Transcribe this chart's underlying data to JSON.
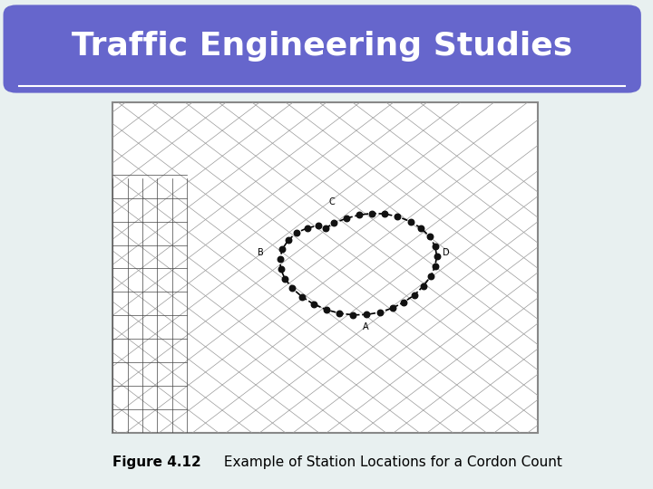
{
  "title": "Traffic Engineering Studies",
  "title_bg_color": "#6666cc",
  "title_text_color": "#ffffff",
  "slide_bg_color": "#e8f0f0",
  "slide_border_color": "#6699aa",
  "caption_bold": "Figure 4.12",
  "caption_rest": " Example of Station Locations for a Cordon Count",
  "caption_color": "#000000",
  "map_bg": "#ffffff",
  "cordon_dot_color": "#111111",
  "label_A": "A",
  "label_B": "B",
  "label_C": "C",
  "label_D": "D",
  "cordon_points": [
    [
      0.5,
      0.62
    ],
    [
      0.52,
      0.635
    ],
    [
      0.55,
      0.65
    ],
    [
      0.58,
      0.66
    ],
    [
      0.61,
      0.665
    ],
    [
      0.64,
      0.663
    ],
    [
      0.67,
      0.655
    ],
    [
      0.7,
      0.64
    ],
    [
      0.725,
      0.62
    ],
    [
      0.745,
      0.595
    ],
    [
      0.758,
      0.565
    ],
    [
      0.762,
      0.535
    ],
    [
      0.758,
      0.505
    ],
    [
      0.748,
      0.474
    ],
    [
      0.73,
      0.444
    ],
    [
      0.71,
      0.418
    ],
    [
      0.685,
      0.396
    ],
    [
      0.658,
      0.378
    ],
    [
      0.628,
      0.365
    ],
    [
      0.597,
      0.358
    ],
    [
      0.565,
      0.357
    ],
    [
      0.533,
      0.362
    ],
    [
      0.502,
      0.373
    ],
    [
      0.472,
      0.39
    ],
    [
      0.445,
      0.412
    ],
    [
      0.422,
      0.438
    ],
    [
      0.405,
      0.466
    ],
    [
      0.395,
      0.496
    ],
    [
      0.393,
      0.527
    ],
    [
      0.399,
      0.557
    ],
    [
      0.413,
      0.584
    ],
    [
      0.432,
      0.606
    ],
    [
      0.457,
      0.62
    ],
    [
      0.483,
      0.628
    ]
  ]
}
